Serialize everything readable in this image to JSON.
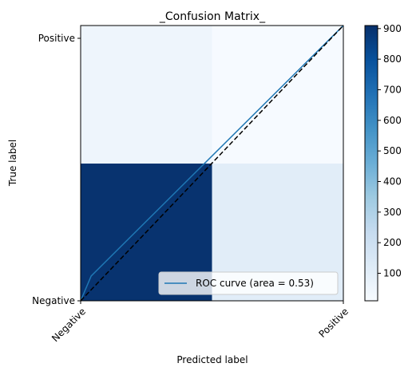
{
  "chart_data": {
    "type": "heatmap",
    "title": "_Confusion Matrix_",
    "xlabel": "Predicted label",
    "ylabel": "True label",
    "x_categories": [
      "Negative",
      "Positive"
    ],
    "y_categories": [
      "Negative",
      "Positive"
    ],
    "matrix": [
      {
        "true": "Negative",
        "predicted": "Negative",
        "value": 900
      },
      {
        "true": "Negative",
        "predicted": "Positive",
        "value": 110
      },
      {
        "true": "Positive",
        "predicted": "Negative",
        "value": 50
      },
      {
        "true": "Positive",
        "predicted": "Positive",
        "value": 15
      }
    ],
    "colormap": "Blues",
    "colorbar": {
      "min": 10,
      "max": 910,
      "ticks": [
        100,
        200,
        300,
        400,
        500,
        600,
        700,
        800,
        900
      ]
    },
    "overlay": {
      "roc_curve": {
        "legend": "ROC curve (area = 0.53)",
        "color": "#1f77b4",
        "fpr": [
          0.0,
          0.04,
          1.0
        ],
        "tpr": [
          0.0,
          0.09,
          1.0
        ]
      },
      "diagonal": {
        "color": "#000000",
        "style": "dashed"
      }
    },
    "legend_position": "lower-right"
  }
}
